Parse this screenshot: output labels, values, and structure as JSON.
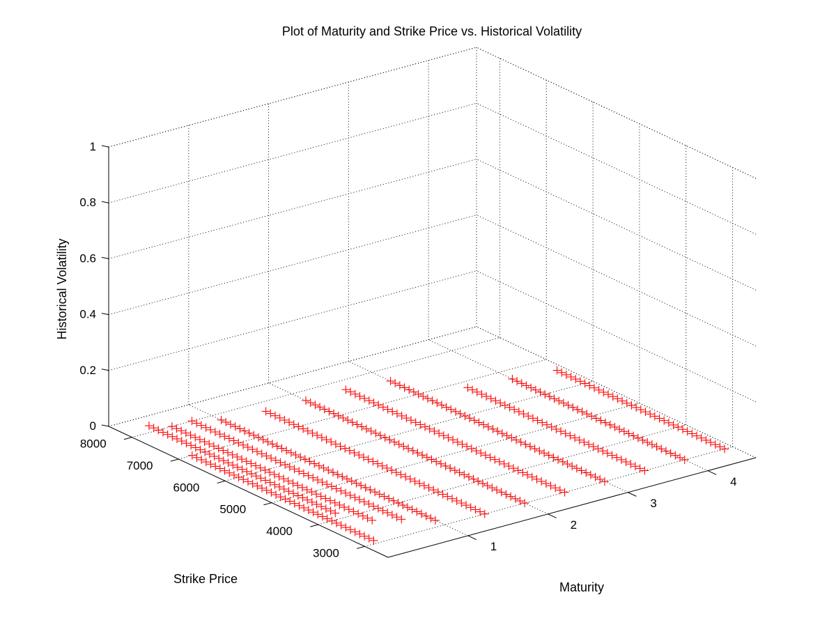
{
  "chart_data": {
    "type": "scatter",
    "title": "Plot of Maturity and Strike Price vs. Historical Volatility",
    "xlabel": "Maturity",
    "ylabel": "Strike Price",
    "zlabel": "Historical Volatility",
    "xlim": [
      0,
      4.6
    ],
    "ylim": [
      2500,
      8500
    ],
    "zlim": [
      0,
      1
    ],
    "x_ticks": [
      "1",
      "2",
      "3",
      "4"
    ],
    "y_ticks": [
      "3000",
      "4000",
      "5000",
      "6000",
      "7000",
      "8000"
    ],
    "z_ticks": [
      "0",
      "0.2",
      "0.4",
      "0.6",
      "0.8",
      "1"
    ],
    "x_tick_values": [
      1,
      2,
      3,
      4
    ],
    "y_tick_values": [
      3000,
      4000,
      5000,
      6000,
      7000,
      8000
    ],
    "z_tick_values": [
      0,
      0.2,
      0.4,
      0.6,
      0.8,
      1
    ],
    "grid": true,
    "marker": "+",
    "marker_color": "#ff0000",
    "series": [
      {
        "maturity": 0.17,
        "strike_min": 3100,
        "strike_max": 7000,
        "strike_step": 100,
        "volatility": 0
      },
      {
        "maturity": 0.33,
        "strike_min": 4200,
        "strike_max": 8200,
        "strike_step": 100,
        "volatility": 0
      },
      {
        "maturity": 0.5,
        "strike_min": 3700,
        "strike_max": 8000,
        "strike_step": 100,
        "volatility": 0
      },
      {
        "maturity": 0.75,
        "strike_min": 3500,
        "strike_max": 8000,
        "strike_step": 100,
        "volatility": 0
      },
      {
        "maturity": 1.0,
        "strike_min": 3200,
        "strike_max": 7800,
        "strike_step": 100,
        "volatility": 0
      },
      {
        "maturity": 1.5,
        "strike_min": 3000,
        "strike_max": 7700,
        "strike_step": 100,
        "volatility": 0
      },
      {
        "maturity": 2.0,
        "strike_min": 3000,
        "strike_max": 7700,
        "strike_step": 100,
        "volatility": 0
      },
      {
        "maturity": 2.5,
        "strike_min": 3000,
        "strike_max": 7700,
        "strike_step": 100,
        "volatility": 0
      },
      {
        "maturity": 3.0,
        "strike_min": 3000,
        "strike_max": 7600,
        "strike_step": 100,
        "volatility": 0
      },
      {
        "maturity": 3.5,
        "strike_min": 3000,
        "strike_max": 6800,
        "strike_step": 100,
        "volatility": 0
      },
      {
        "maturity": 4.0,
        "strike_min": 3000,
        "strike_max": 6700,
        "strike_step": 100,
        "volatility": 0
      },
      {
        "maturity": 4.5,
        "strike_min": 3000,
        "strike_max": 6600,
        "strike_step": 100,
        "volatility": 0
      }
    ]
  }
}
